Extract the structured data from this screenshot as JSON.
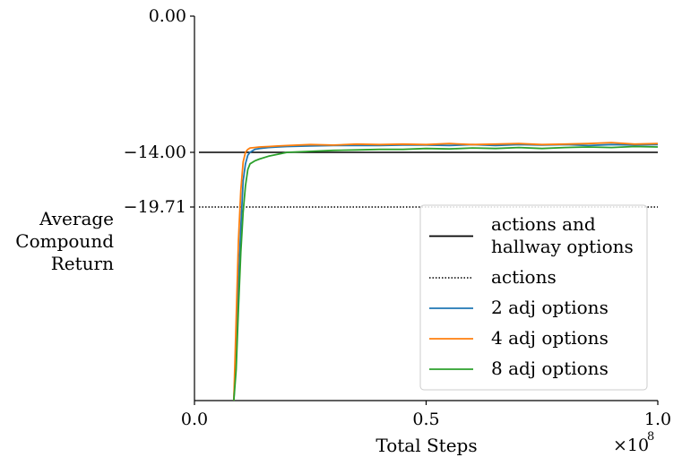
{
  "chart_data": {
    "type": "line",
    "xlabel": "Total Steps",
    "x_multiplier": "×10",
    "x_multiplier_exp": "8",
    "ylabel_lines": [
      "Average",
      "Compound",
      "Return"
    ],
    "xlim": [
      0.0,
      1.0
    ],
    "ylim": [
      -51,
      0
    ],
    "x_ticks": [
      {
        "value": 0.0,
        "label": "0.0"
      },
      {
        "value": 0.5,
        "label": "0.5"
      },
      {
        "value": 1.0,
        "label": "1.0"
      }
    ],
    "y_ticks": [
      {
        "value": 0.0,
        "label": "0.00"
      },
      {
        "value": -14.0,
        "label": "−14.00"
      },
      {
        "value": -19.71,
        "label": "−19.71"
      }
    ],
    "reference_lines": [
      {
        "name_lines": [
          "actions and",
          "hallway options"
        ],
        "value": -14.0,
        "style": "solid",
        "color": "#000000"
      },
      {
        "name_lines": [
          "actions"
        ],
        "value": -19.71,
        "style": "dotted",
        "color": "#000000"
      }
    ],
    "series": [
      {
        "name": "2 adj options",
        "color": "#1f77b4",
        "x": [
          0.085,
          0.09,
          0.095,
          0.1,
          0.105,
          0.11,
          0.115,
          0.12,
          0.13,
          0.14,
          0.16,
          0.18,
          0.2,
          0.25,
          0.3,
          0.35,
          0.4,
          0.45,
          0.5,
          0.55,
          0.6,
          0.65,
          0.7,
          0.75,
          0.8,
          0.85,
          0.9,
          0.95,
          1.0
        ],
        "values": [
          -51,
          -43,
          -32,
          -23,
          -17,
          -15.2,
          -14.3,
          -14.0,
          -13.7,
          -13.6,
          -13.5,
          -13.45,
          -13.4,
          -13.35,
          -13.3,
          -13.3,
          -13.3,
          -13.25,
          -13.25,
          -13.3,
          -13.2,
          -13.3,
          -13.2,
          -13.25,
          -13.2,
          -13.3,
          -13.2,
          -13.25,
          -13.2
        ]
      },
      {
        "name": "4 adj options",
        "color": "#ff7f0e",
        "x": [
          0.085,
          0.09,
          0.095,
          0.1,
          0.105,
          0.11,
          0.115,
          0.12,
          0.13,
          0.14,
          0.16,
          0.18,
          0.2,
          0.25,
          0.3,
          0.35,
          0.4,
          0.45,
          0.5,
          0.55,
          0.6,
          0.65,
          0.7,
          0.75,
          0.8,
          0.85,
          0.9,
          0.95,
          1.0
        ],
        "values": [
          -51,
          -38,
          -25,
          -18,
          -15,
          -14.0,
          -13.7,
          -13.55,
          -13.5,
          -13.45,
          -13.4,
          -13.35,
          -13.3,
          -13.2,
          -13.25,
          -13.15,
          -13.2,
          -13.15,
          -13.2,
          -13.1,
          -13.2,
          -13.15,
          -13.1,
          -13.2,
          -13.15,
          -13.1,
          -13.0,
          -13.15,
          -13.1
        ]
      },
      {
        "name": "8 adj options",
        "color": "#2ca02c",
        "x": [
          0.085,
          0.09,
          0.095,
          0.1,
          0.105,
          0.11,
          0.115,
          0.12,
          0.13,
          0.14,
          0.16,
          0.18,
          0.2,
          0.25,
          0.3,
          0.35,
          0.4,
          0.45,
          0.5,
          0.55,
          0.6,
          0.65,
          0.7,
          0.75,
          0.8,
          0.85,
          0.9,
          0.95,
          1.0
        ],
        "values": [
          -51,
          -46,
          -36,
          -27,
          -20.5,
          -17.5,
          -15.8,
          -15.2,
          -14.9,
          -14.7,
          -14.4,
          -14.2,
          -14.0,
          -13.9,
          -13.8,
          -13.75,
          -13.7,
          -13.7,
          -13.6,
          -13.65,
          -13.55,
          -13.6,
          -13.5,
          -13.6,
          -13.5,
          -13.45,
          -13.5,
          -13.4,
          -13.45
        ]
      }
    ],
    "legend_position": "lower-right"
  }
}
